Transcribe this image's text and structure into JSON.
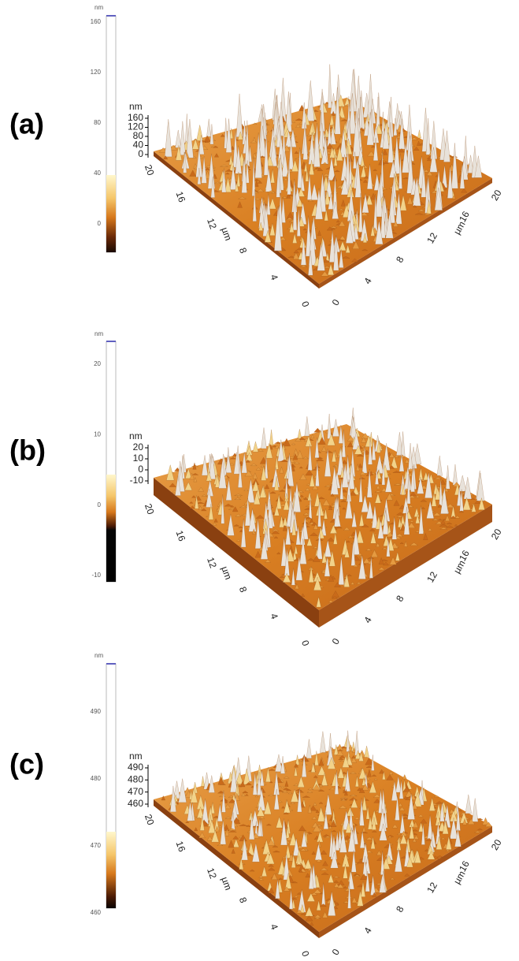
{
  "panels": [
    {
      "label": "(a)",
      "colorbar": {
        "unit": "nm",
        "ticks": [
          160,
          120,
          80,
          40,
          0
        ]
      },
      "z_axis": {
        "unit": "nm",
        "ticks": [
          160,
          120,
          80,
          40,
          0
        ]
      },
      "left_axis": {
        "unit": "µm",
        "ticks": [
          20,
          16,
          12,
          8,
          4,
          0
        ]
      },
      "right_axis": {
        "unit": "µm",
        "ticks": [
          0,
          4,
          8,
          12,
          16,
          20
        ]
      }
    },
    {
      "label": "(b)",
      "colorbar": {
        "unit": "nm",
        "ticks": [
          20,
          10,
          0,
          -10
        ]
      },
      "z_axis": {
        "unit": "nm",
        "ticks": [
          20,
          10,
          0,
          -10
        ]
      },
      "left_axis": {
        "unit": "µm",
        "ticks": [
          20,
          16,
          12,
          8,
          4,
          0
        ]
      },
      "right_axis": {
        "unit": "µm",
        "ticks": [
          0,
          4,
          8,
          12,
          16,
          20
        ]
      }
    },
    {
      "label": "(c)",
      "colorbar": {
        "unit": "nm",
        "ticks": [
          490,
          480,
          470,
          460
        ]
      },
      "z_axis": {
        "unit": "nm",
        "ticks": [
          490,
          480,
          470,
          460
        ]
      },
      "left_axis": {
        "unit": "µm",
        "ticks": [
          20,
          16,
          12,
          8,
          4,
          0
        ]
      },
      "right_axis": {
        "unit": "µm",
        "ticks": [
          0,
          4,
          8,
          12,
          16,
          20
        ]
      }
    }
  ]
}
